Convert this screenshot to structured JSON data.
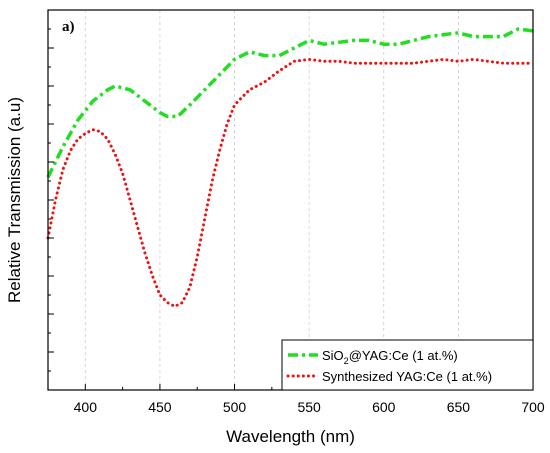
{
  "chart_data": {
    "type": "line",
    "panel_label": "a)",
    "xlabel": "Wavelength (nm)",
    "ylabel": "Relative Transmission (a.u)",
    "xlim": [
      375,
      700
    ],
    "ylim": [
      0,
      1
    ],
    "x_ticks": [
      400,
      450,
      500,
      550,
      600,
      650,
      700
    ],
    "y_tick_labels_shown": false,
    "grid": "vertical dashed lines at x ticks",
    "legend_position": "bottom-right",
    "series": [
      {
        "name": "SiO₂@YAG:Ce (1 at.%)",
        "name_main": "SiO",
        "name_sub": "2",
        "name_rest": "@YAG:Ce (1 at.%)",
        "color": "#22dd22",
        "style": "dash-dot",
        "x": [
          375,
          385,
          395,
          405,
          415,
          420,
          430,
          440,
          450,
          455,
          462,
          470,
          480,
          490,
          500,
          510,
          520,
          530,
          540,
          550,
          560,
          570,
          580,
          590,
          600,
          610,
          620,
          630,
          640,
          650,
          660,
          670,
          680,
          690,
          700
        ],
        "values": [
          0.56,
          0.64,
          0.71,
          0.76,
          0.79,
          0.8,
          0.79,
          0.76,
          0.73,
          0.72,
          0.72,
          0.75,
          0.79,
          0.83,
          0.87,
          0.89,
          0.88,
          0.88,
          0.9,
          0.92,
          0.91,
          0.915,
          0.92,
          0.92,
          0.91,
          0.91,
          0.92,
          0.93,
          0.935,
          0.94,
          0.93,
          0.93,
          0.93,
          0.95,
          0.945
        ]
      },
      {
        "name": "Synthesized YAG:Ce (1 at.%)",
        "color": "#ee1111",
        "style": "dotted",
        "x": [
          375,
          380,
          385,
          390,
          395,
          400,
          405,
          410,
          415,
          420,
          425,
          430,
          435,
          440,
          445,
          450,
          455,
          460,
          465,
          470,
          475,
          480,
          485,
          490,
          495,
          500,
          510,
          520,
          530,
          540,
          550,
          560,
          570,
          580,
          590,
          600,
          610,
          620,
          630,
          640,
          650,
          660,
          670,
          680,
          690,
          700
        ],
        "values": [
          0.4,
          0.5,
          0.58,
          0.63,
          0.66,
          0.675,
          0.685,
          0.68,
          0.66,
          0.62,
          0.57,
          0.5,
          0.43,
          0.36,
          0.3,
          0.25,
          0.23,
          0.22,
          0.23,
          0.27,
          0.35,
          0.45,
          0.55,
          0.63,
          0.7,
          0.75,
          0.79,
          0.81,
          0.84,
          0.865,
          0.87,
          0.865,
          0.865,
          0.86,
          0.86,
          0.86,
          0.86,
          0.86,
          0.865,
          0.87,
          0.865,
          0.87,
          0.865,
          0.86,
          0.86,
          0.86
        ]
      }
    ]
  }
}
